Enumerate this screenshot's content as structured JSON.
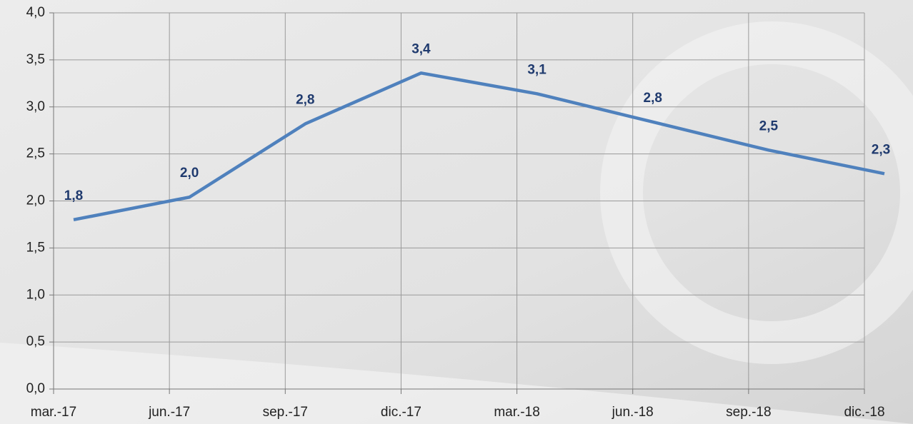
{
  "chart_data": {
    "type": "line",
    "categories": [
      "mar.-17",
      "jun.-17",
      "sep.-17",
      "dic.-17",
      "mar.-18",
      "jun.-18",
      "sep.-18",
      "dic.-18"
    ],
    "series": [
      {
        "color": "#4f81bd",
        "values": [
          1.8,
          2.04,
          2.82,
          3.36,
          3.14,
          2.84,
          2.54,
          2.29
        ],
        "value_labels": [
          "1,8",
          "2,0",
          "2,8",
          "3,4",
          "3,1",
          "2,8",
          "2,5",
          "2,3"
        ]
      }
    ],
    "ylim": [
      0,
      4
    ],
    "yticks": [
      {
        "value": 0,
        "label": "0,0"
      },
      {
        "value": 0.5,
        "label": "0,5"
      },
      {
        "value": 1,
        "label": "1,0"
      },
      {
        "value": 1.5,
        "label": "1,5"
      },
      {
        "value": 2,
        "label": "2,0"
      },
      {
        "value": 2.5,
        "label": "2,5"
      },
      {
        "value": 3,
        "label": "3,0"
      },
      {
        "value": 3.5,
        "label": "3,5"
      },
      {
        "value": 4,
        "label": "4,0"
      }
    ],
    "grid": true,
    "label_color": "#1f3a6e"
  }
}
